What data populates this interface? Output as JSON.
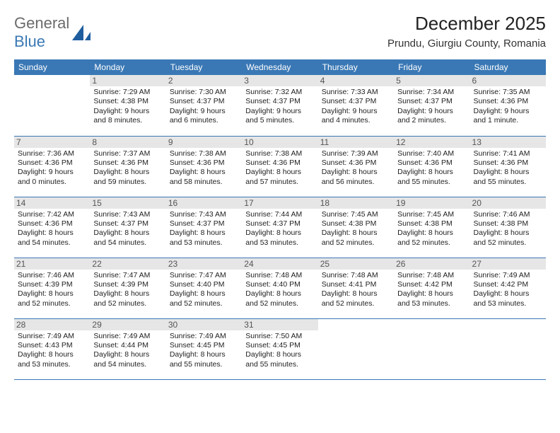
{
  "logo": {
    "text1": "General",
    "text2": "Blue"
  },
  "title": "December 2025",
  "location": "Prundu, Giurgiu County, Romania",
  "colors": {
    "header_bg": "#3a78b5",
    "header_fg": "#ffffff",
    "daynum_bg": "#e6e6e6",
    "row_border": "#3a78b5",
    "logo_gray": "#6b6b6b",
    "logo_blue": "#3a78b5"
  },
  "columns": [
    "Sunday",
    "Monday",
    "Tuesday",
    "Wednesday",
    "Thursday",
    "Friday",
    "Saturday"
  ],
  "weeks": [
    [
      null,
      {
        "n": "1",
        "sr": "7:29 AM",
        "ss": "4:38 PM",
        "dl": "9 hours and 8 minutes."
      },
      {
        "n": "2",
        "sr": "7:30 AM",
        "ss": "4:37 PM",
        "dl": "9 hours and 6 minutes."
      },
      {
        "n": "3",
        "sr": "7:32 AM",
        "ss": "4:37 PM",
        "dl": "9 hours and 5 minutes."
      },
      {
        "n": "4",
        "sr": "7:33 AM",
        "ss": "4:37 PM",
        "dl": "9 hours and 4 minutes."
      },
      {
        "n": "5",
        "sr": "7:34 AM",
        "ss": "4:37 PM",
        "dl": "9 hours and 2 minutes."
      },
      {
        "n": "6",
        "sr": "7:35 AM",
        "ss": "4:36 PM",
        "dl": "9 hours and 1 minute."
      }
    ],
    [
      {
        "n": "7",
        "sr": "7:36 AM",
        "ss": "4:36 PM",
        "dl": "9 hours and 0 minutes."
      },
      {
        "n": "8",
        "sr": "7:37 AM",
        "ss": "4:36 PM",
        "dl": "8 hours and 59 minutes."
      },
      {
        "n": "9",
        "sr": "7:38 AM",
        "ss": "4:36 PM",
        "dl": "8 hours and 58 minutes."
      },
      {
        "n": "10",
        "sr": "7:38 AM",
        "ss": "4:36 PM",
        "dl": "8 hours and 57 minutes."
      },
      {
        "n": "11",
        "sr": "7:39 AM",
        "ss": "4:36 PM",
        "dl": "8 hours and 56 minutes."
      },
      {
        "n": "12",
        "sr": "7:40 AM",
        "ss": "4:36 PM",
        "dl": "8 hours and 55 minutes."
      },
      {
        "n": "13",
        "sr": "7:41 AM",
        "ss": "4:36 PM",
        "dl": "8 hours and 55 minutes."
      }
    ],
    [
      {
        "n": "14",
        "sr": "7:42 AM",
        "ss": "4:36 PM",
        "dl": "8 hours and 54 minutes."
      },
      {
        "n": "15",
        "sr": "7:43 AM",
        "ss": "4:37 PM",
        "dl": "8 hours and 54 minutes."
      },
      {
        "n": "16",
        "sr": "7:43 AM",
        "ss": "4:37 PM",
        "dl": "8 hours and 53 minutes."
      },
      {
        "n": "17",
        "sr": "7:44 AM",
        "ss": "4:37 PM",
        "dl": "8 hours and 53 minutes."
      },
      {
        "n": "18",
        "sr": "7:45 AM",
        "ss": "4:38 PM",
        "dl": "8 hours and 52 minutes."
      },
      {
        "n": "19",
        "sr": "7:45 AM",
        "ss": "4:38 PM",
        "dl": "8 hours and 52 minutes."
      },
      {
        "n": "20",
        "sr": "7:46 AM",
        "ss": "4:38 PM",
        "dl": "8 hours and 52 minutes."
      }
    ],
    [
      {
        "n": "21",
        "sr": "7:46 AM",
        "ss": "4:39 PM",
        "dl": "8 hours and 52 minutes."
      },
      {
        "n": "22",
        "sr": "7:47 AM",
        "ss": "4:39 PM",
        "dl": "8 hours and 52 minutes."
      },
      {
        "n": "23",
        "sr": "7:47 AM",
        "ss": "4:40 PM",
        "dl": "8 hours and 52 minutes."
      },
      {
        "n": "24",
        "sr": "7:48 AM",
        "ss": "4:40 PM",
        "dl": "8 hours and 52 minutes."
      },
      {
        "n": "25",
        "sr": "7:48 AM",
        "ss": "4:41 PM",
        "dl": "8 hours and 52 minutes."
      },
      {
        "n": "26",
        "sr": "7:48 AM",
        "ss": "4:42 PM",
        "dl": "8 hours and 53 minutes."
      },
      {
        "n": "27",
        "sr": "7:49 AM",
        "ss": "4:42 PM",
        "dl": "8 hours and 53 minutes."
      }
    ],
    [
      {
        "n": "28",
        "sr": "7:49 AM",
        "ss": "4:43 PM",
        "dl": "8 hours and 53 minutes."
      },
      {
        "n": "29",
        "sr": "7:49 AM",
        "ss": "4:44 PM",
        "dl": "8 hours and 54 minutes."
      },
      {
        "n": "30",
        "sr": "7:49 AM",
        "ss": "4:45 PM",
        "dl": "8 hours and 55 minutes."
      },
      {
        "n": "31",
        "sr": "7:50 AM",
        "ss": "4:45 PM",
        "dl": "8 hours and 55 minutes."
      },
      null,
      null,
      null
    ]
  ],
  "labels": {
    "sunrise": "Sunrise:",
    "sunset": "Sunset:",
    "daylight": "Daylight:"
  }
}
